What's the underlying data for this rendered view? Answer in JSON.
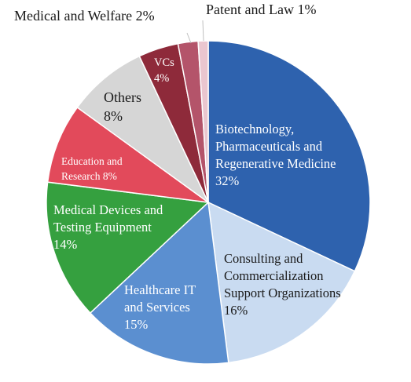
{
  "chart_data": {
    "type": "pie",
    "title": "",
    "slices": [
      {
        "label_lines": [
          "Biotechnology,",
          "Pharmaceuticals and",
          "Regenerative Medicine"
        ],
        "pct_label": "32%",
        "value": 32,
        "color": "#2e62ae",
        "text_color": "#ffffff"
      },
      {
        "label_lines": [
          "Consulting and",
          "Commercialization",
          "Support Organizations"
        ],
        "pct_label": "16%",
        "value": 16,
        "color": "#c9dbf1",
        "text_color": "#1a1a1a"
      },
      {
        "label_lines": [
          "Healthcare IT",
          "and Services"
        ],
        "pct_label": "15%",
        "value": 15,
        "color": "#5b8fd0",
        "text_color": "#ffffff"
      },
      {
        "label_lines": [
          "Medical Devices and",
          "Testing Equipment"
        ],
        "pct_label": "14%",
        "value": 14,
        "color": "#35a03f",
        "text_color": "#ffffff"
      },
      {
        "label_lines": [
          "Education and",
          "Research 8%"
        ],
        "pct_label": "",
        "value": 8,
        "color": "#e24a5b",
        "text_color": "#ffffff"
      },
      {
        "label_lines": [
          "Others"
        ],
        "pct_label": "8%",
        "value": 8,
        "color": "#d6d6d6",
        "text_color": "#1a1a1a"
      },
      {
        "label_lines": [
          "VCs"
        ],
        "pct_label": "4%",
        "value": 4,
        "color": "#8e2a3a",
        "text_color": "#ffffff"
      },
      {
        "label_lines": [
          "Medical and Welfare 2%"
        ],
        "pct_label": "",
        "value": 2,
        "color": "#b4546a",
        "text_color": "#1a1a1a"
      },
      {
        "label_lines": [
          "Patent and Law 1%"
        ],
        "pct_label": "",
        "value": 1,
        "color": "#eac6cf",
        "text_color": "#1a1a1a"
      }
    ]
  }
}
